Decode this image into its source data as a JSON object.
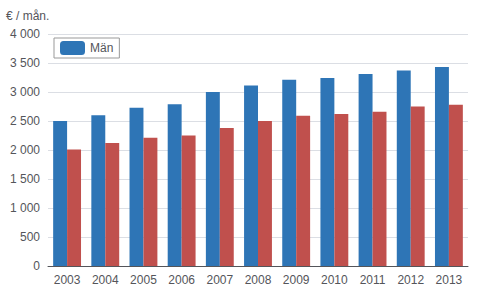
{
  "chart_data": {
    "type": "bar",
    "ylabel": "€ / mån.",
    "categories": [
      "2003",
      "2004",
      "2005",
      "2006",
      "2007",
      "2008",
      "2009",
      "2010",
      "2011",
      "2012",
      "2013"
    ],
    "series": [
      {
        "name": "Män",
        "color": "#2E75B6",
        "values": [
          2500,
          2600,
          2730,
          2790,
          3000,
          3110,
          3210,
          3240,
          3310,
          3370,
          3430
        ]
      },
      {
        "color": "#C0504D",
        "values": [
          2010,
          2120,
          2210,
          2250,
          2380,
          2500,
          2590,
          2620,
          2660,
          2750,
          2780
        ]
      }
    ],
    "ylim": [
      0,
      4000
    ],
    "yticks": [
      0,
      500,
      {
        "value": 1000,
        "label": "1 000"
      },
      {
        "value": 1500,
        "label": "1 500"
      },
      {
        "value": 2000,
        "label": "2 000"
      },
      {
        "value": 2500,
        "label": "2 500"
      },
      {
        "value": 3000,
        "label": "3 000"
      },
      {
        "value": 3500,
        "label": "3 500"
      },
      {
        "value": 4000,
        "label": "4 000"
      }
    ],
    "grid": true,
    "legend": "upper left"
  }
}
